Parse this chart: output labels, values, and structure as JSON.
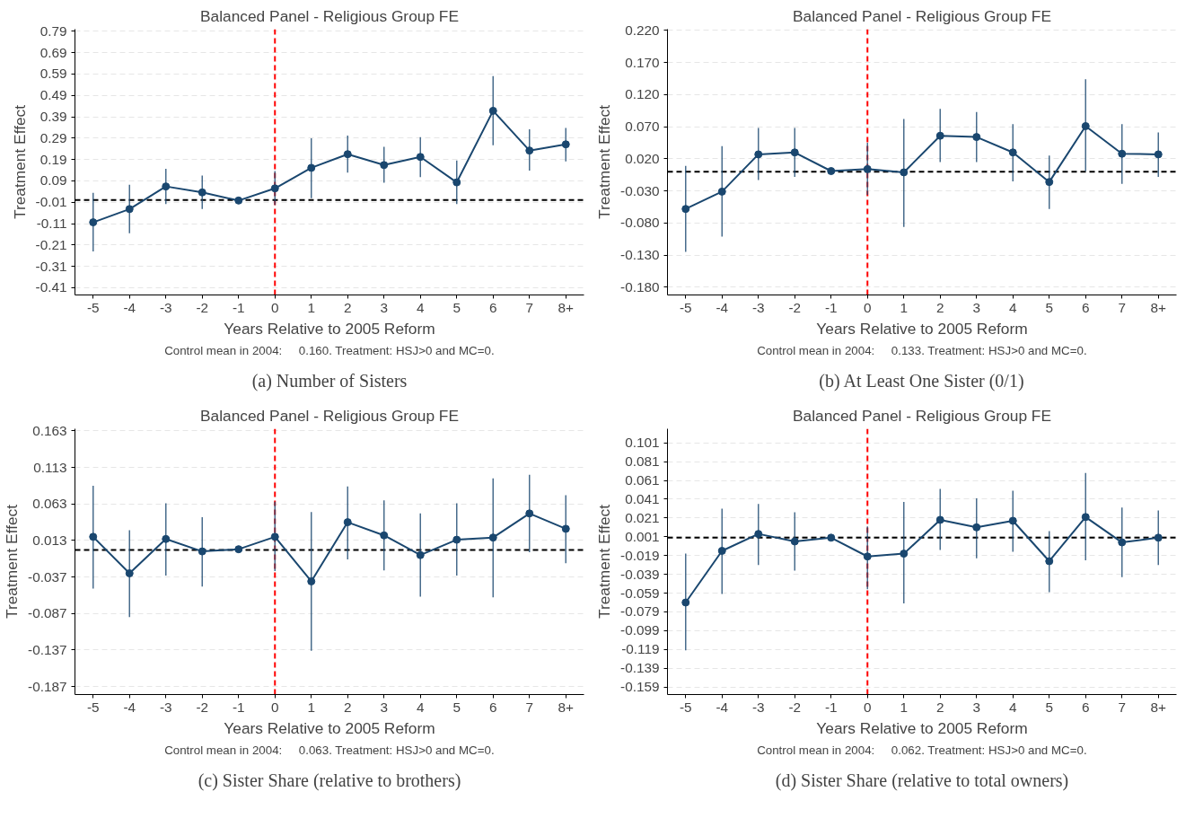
{
  "chart_data": [
    {
      "type": "line",
      "title": "Balanced Panel - Religious Group FE",
      "xlabel": "Years Relative to 2005 Reform",
      "ylabel": "Treatment Effect",
      "annotations": [
        "Control mean in 2004:     0.160. Treatment: HSJ>0 and MC=0.",
        "(a) Number of Sisters"
      ],
      "categories": [
        "-5",
        "-4",
        "-3",
        "-2",
        "-1",
        "0",
        "1",
        "2",
        "3",
        "4",
        "5",
        "6",
        "7",
        "8+"
      ],
      "series": [
        {
          "color": "#1a476f",
          "values": [
            -0.104,
            -0.042,
            0.064,
            0.036,
            -0.002,
            0.055,
            0.151,
            0.215,
            0.164,
            0.202,
            0.083,
            0.418,
            0.232,
            0.261
          ],
          "errors": [
            [
              -0.24,
              0.034
            ],
            [
              -0.155,
              0.072
            ],
            [
              -0.019,
              0.147
            ],
            [
              -0.042,
              0.115
            ],
            null,
            [
              -0.023,
              0.136
            ],
            [
              0.009,
              0.289
            ],
            [
              0.129,
              0.302
            ],
            [
              0.081,
              0.249
            ],
            [
              0.108,
              0.295
            ],
            [
              -0.019,
              0.185
            ],
            [
              0.257,
              0.58
            ],
            [
              0.138,
              0.331
            ],
            [
              0.181,
              0.338
            ]
          ]
        }
      ],
      "ylim": [
        -0.444,
        0.8
      ],
      "yticks": [
        -0.41,
        -0.31,
        -0.21,
        -0.11,
        -0.01,
        0.09,
        0.19,
        0.29,
        0.39,
        0.49,
        0.59,
        0.69,
        0.79
      ],
      "ref_lines": [
        {
          "axis": "x",
          "value": "0",
          "color": "#ff0000",
          "line_style": "dashed"
        },
        {
          "axis": "y",
          "value": 0,
          "color": "#000000",
          "line_style": "dashed"
        }
      ],
      "grid": "y",
      "marker": "circle"
    },
    {
      "type": "line",
      "title": "Balanced Panel - Religious Group FE",
      "xlabel": "Years Relative to 2005 Reform",
      "ylabel": "Treatment Effect",
      "annotations": [
        "Control mean in 2004:     0.133. Treatment: HSJ>0 and MC=0.",
        "(b) At Least One Sister (0/1)"
      ],
      "categories": [
        "-5",
        "-4",
        "-3",
        "-2",
        "-1",
        "0",
        "1",
        "2",
        "3",
        "4",
        "5",
        "6",
        "7",
        "8+"
      ],
      "series": [
        {
          "color": "#1a476f",
          "values": [
            -0.058,
            -0.031,
            0.027,
            0.03,
            0.001,
            0.004,
            -0.001,
            0.056,
            0.054,
            0.03,
            -0.016,
            0.071,
            0.028,
            0.027
          ],
          "errors": [
            [
              -0.125,
              0.009
            ],
            [
              -0.101,
              0.04
            ],
            [
              -0.013,
              0.068
            ],
            [
              -0.008,
              0.068
            ],
            null,
            [
              -0.036,
              0.045
            ],
            [
              -0.086,
              0.082
            ],
            [
              0.015,
              0.098
            ],
            [
              0.015,
              0.093
            ],
            [
              -0.015,
              0.074
            ],
            [
              -0.058,
              0.025
            ],
            [
              0.001,
              0.144
            ],
            [
              -0.019,
              0.074
            ],
            [
              -0.008,
              0.061
            ]
          ]
        }
      ],
      "ylim": [
        -0.192,
        0.222
      ],
      "yticks": [
        {
          "value": -0.18,
          "label": "-0.180"
        },
        {
          "value": -0.13,
          "label": "-0.130"
        },
        {
          "value": -0.08,
          "label": "-0.080"
        },
        {
          "value": -0.03,
          "label": "-0.030"
        },
        {
          "value": 0.02,
          "label": "0.020"
        },
        {
          "value": 0.07,
          "label": "0.070"
        },
        {
          "value": 0.12,
          "label": "0.120"
        },
        {
          "value": 0.17,
          "label": "0.170"
        },
        {
          "value": 0.22,
          "label": "0.220"
        }
      ],
      "ref_lines": [
        {
          "axis": "x",
          "value": "0",
          "color": "#ff0000",
          "line_style": "dashed"
        },
        {
          "axis": "y",
          "value": 0,
          "color": "#000000",
          "line_style": "dashed"
        }
      ],
      "grid": "y",
      "marker": "circle"
    },
    {
      "type": "line",
      "title": "Balanced Panel - Religious Group FE",
      "xlabel": "Years Relative to 2005 Reform",
      "ylabel": "Treatment Effect",
      "annotations": [
        "Control mean in 2004:     0.063. Treatment: HSJ>0 and MC=0.",
        "(c) Sister Share (relative to brothers)"
      ],
      "categories": [
        "-5",
        "-4",
        "-3",
        "-2",
        "-1",
        "0",
        "1",
        "2",
        "3",
        "4",
        "5",
        "6",
        "7",
        "8+"
      ],
      "series": [
        {
          "color": "#1a476f",
          "values": [
            0.018,
            -0.032,
            0.015,
            -0.002,
            0.001,
            0.018,
            -0.043,
            0.038,
            0.02,
            -0.007,
            0.014,
            0.017,
            0.05,
            0.029
          ],
          "errors": [
            [
              -0.053,
              0.088
            ],
            [
              -0.092,
              0.027
            ],
            [
              -0.035,
              0.064
            ],
            [
              -0.05,
              0.045
            ],
            null,
            [
              -0.029,
              0.066
            ],
            [
              -0.138,
              0.052
            ],
            [
              -0.013,
              0.087
            ],
            [
              -0.028,
              0.068
            ],
            [
              -0.064,
              0.05
            ],
            [
              -0.035,
              0.064
            ],
            [
              -0.065,
              0.098
            ],
            [
              -0.003,
              0.103
            ],
            [
              -0.018,
              0.075
            ]
          ]
        }
      ],
      "ylim": [
        -0.198,
        0.166
      ],
      "yticks": [
        -0.187,
        -0.137,
        -0.087,
        -0.037,
        0.013,
        0.063,
        0.113,
        0.163
      ],
      "ref_lines": [
        {
          "axis": "x",
          "value": "0",
          "color": "#ff0000",
          "line_style": "dashed"
        },
        {
          "axis": "y",
          "value": 0,
          "color": "#000000",
          "line_style": "dashed"
        }
      ],
      "grid": "y",
      "marker": "circle"
    },
    {
      "type": "line",
      "title": "Balanced Panel - Religious Group FE",
      "xlabel": "Years Relative to 2005 Reform",
      "ylabel": "Treatment Effect",
      "annotations": [
        "Control mean in 2004:     0.062. Treatment: HSJ>0 and MC=0.",
        "(d) Sister Share (relative to total owners)"
      ],
      "categories": [
        "-5",
        "-4",
        "-3",
        "-2",
        "-1",
        "0",
        "1",
        "2",
        "3",
        "4",
        "5",
        "6",
        "7",
        "8+"
      ],
      "series": [
        {
          "color": "#1a476f",
          "values": [
            -0.069,
            -0.014,
            0.004,
            -0.004,
            0.0,
            -0.02,
            -0.017,
            0.019,
            0.011,
            0.018,
            -0.025,
            0.022,
            -0.005,
            0.0
          ],
          "errors": [
            [
              -0.12,
              -0.017
            ],
            [
              -0.06,
              0.031
            ],
            [
              -0.029,
              0.036
            ],
            [
              -0.035,
              0.027
            ],
            null,
            [
              -0.055,
              0.012
            ],
            [
              -0.07,
              0.038
            ],
            [
              -0.013,
              0.052
            ],
            [
              -0.022,
              0.042
            ],
            [
              -0.015,
              0.05
            ],
            [
              -0.058,
              0.007
            ],
            [
              -0.024,
              0.069
            ],
            [
              -0.042,
              0.032
            ],
            [
              -0.029,
              0.029
            ]
          ]
        }
      ],
      "ylim": [
        -0.167,
        0.116
      ],
      "yticks": [
        -0.159,
        -0.139,
        -0.119,
        -0.099,
        -0.079,
        -0.059,
        -0.039,
        -0.019,
        0.001,
        0.021,
        0.041,
        0.061,
        0.081,
        0.101
      ],
      "ref_lines": [
        {
          "axis": "x",
          "value": "0",
          "color": "#ff0000",
          "line_style": "dashed"
        },
        {
          "axis": "y",
          "value": 0,
          "color": "#000000",
          "line_style": "dashed"
        }
      ],
      "grid": "y",
      "marker": "circle"
    }
  ]
}
